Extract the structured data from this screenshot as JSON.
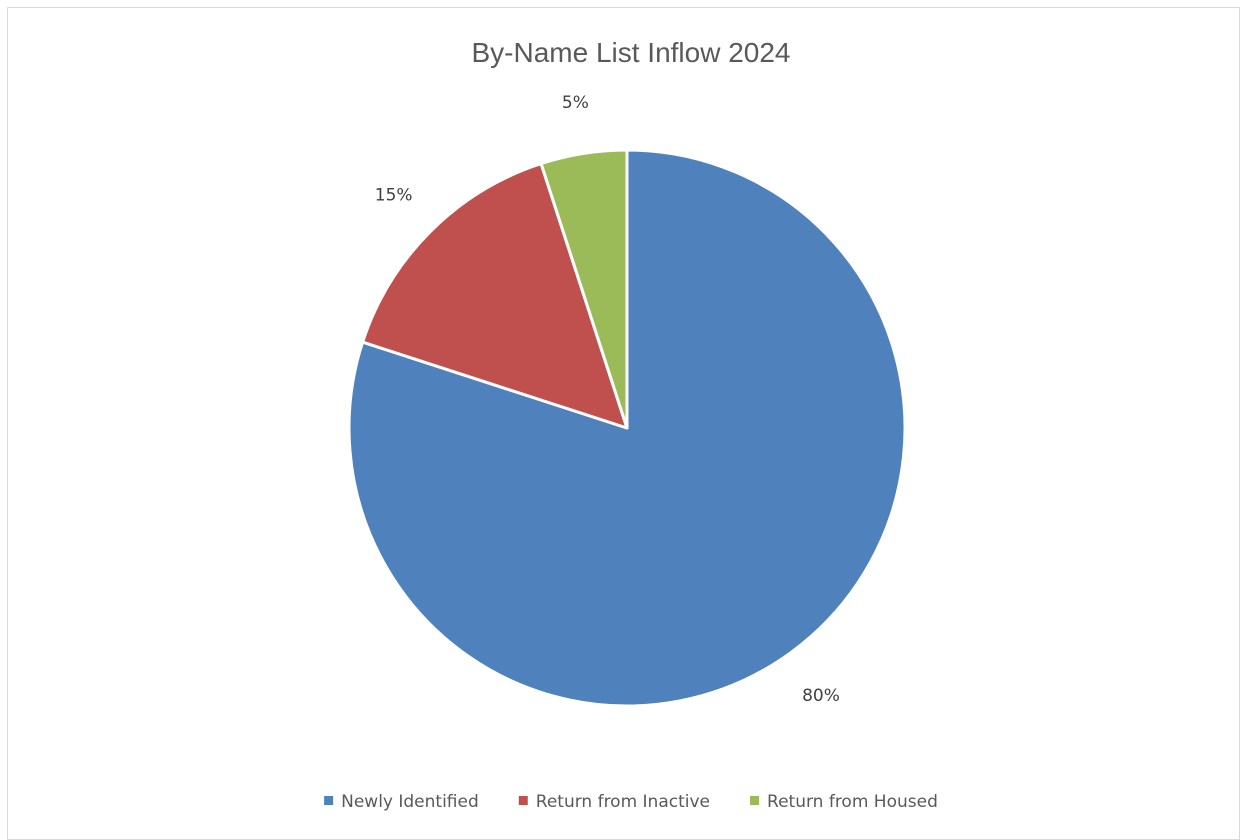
{
  "chart_data": {
    "type": "pie",
    "title": "By-Name List Inflow 2024",
    "categories": [
      "Newly Identified",
      "Return from Inactive",
      "Return from Housed"
    ],
    "values": [
      80,
      15,
      5
    ],
    "data_labels": [
      "80%",
      "15%",
      "5%"
    ],
    "colors": [
      "#4f81bd",
      "#c0504d",
      "#9bbb59"
    ],
    "start_angle_deg": 0,
    "direction": "clockwise",
    "legend_position": "bottom"
  }
}
